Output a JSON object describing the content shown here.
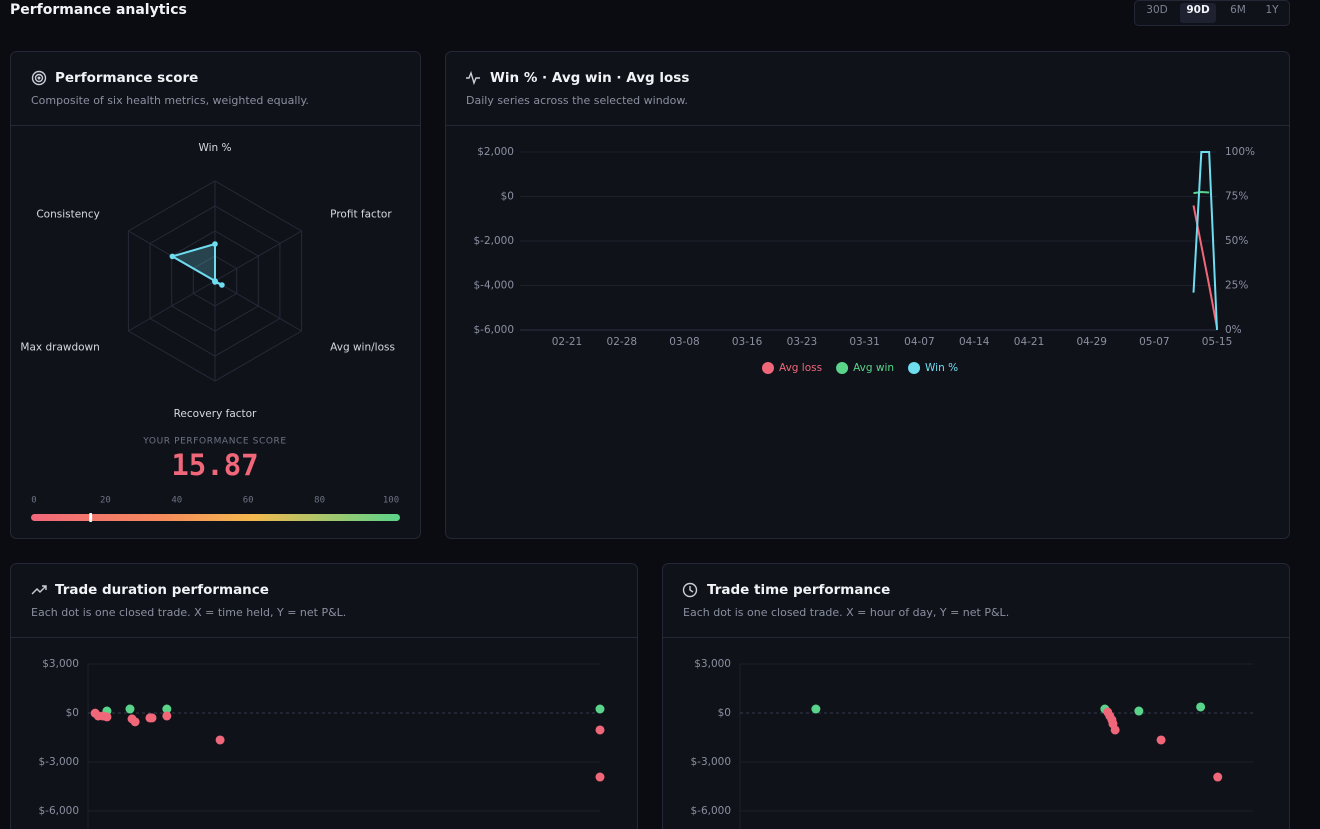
{
  "header": {
    "title": "Performance analytics",
    "ranges": [
      "30D",
      "90D",
      "6M",
      "1Y"
    ],
    "active_range": "90D"
  },
  "score_card": {
    "title": "Performance score",
    "subtitle": "Composite of six health metrics, weighted equally.",
    "chart_data": {
      "type": "radar",
      "categories": [
        "Win %",
        "Profit factor",
        "Avg win/loss",
        "Recovery factor",
        "Max drawdown",
        "Consistency"
      ],
      "values": [
        37,
        0,
        8,
        1,
        0,
        49.22
      ],
      "rlim": [
        0,
        100
      ],
      "rticks": [
        25,
        50,
        75,
        100
      ],
      "color": "#6fdcf0"
    },
    "score_label": "YOUR PERFORMANCE SCORE",
    "score": 15.87,
    "gauge": {
      "xlim": [
        0,
        100
      ],
      "xticks": [
        0,
        20,
        40,
        60,
        80,
        100
      ]
    }
  },
  "series_card": {
    "title": "Win % · Avg win · Avg loss",
    "subtitle": "Daily series across the selected window.",
    "chart_data": {
      "type": "line",
      "x": [
        "05-12",
        "05-13",
        "05-14",
        "05-15"
      ],
      "xlim": [
        "02-15",
        "05-15"
      ],
      "xticks": [
        "02-21",
        "02-28",
        "03-08",
        "03-16",
        "03-23",
        "03-31",
        "04-07",
        "04-14",
        "04-21",
        "04-29",
        "05-07",
        "05-15"
      ],
      "ylim": [
        -6000,
        2000
      ],
      "yticks": [
        {
          "value": 2000,
          "label": "$2,000"
        },
        {
          "value": 0,
          "label": "$0"
        },
        {
          "value": -2000,
          "label": "$-2,000"
        },
        {
          "value": -4000,
          "label": "$-4,000"
        },
        {
          "value": -6000,
          "label": "$-6,000"
        }
      ],
      "y2lim": [
        0,
        100
      ],
      "y2ticks": [
        {
          "value": 100,
          "label": "100%"
        },
        {
          "value": 75,
          "label": "75%"
        },
        {
          "value": 50,
          "label": "50%"
        },
        {
          "value": 25,
          "label": "25%"
        },
        {
          "value": 0,
          "label": "0%"
        }
      ],
      "grid": true,
      "series": [
        {
          "name": "Avg loss",
          "color": "#f0677a",
          "values": [
            -400,
            -2200,
            -4000,
            -5900
          ]
        },
        {
          "name": "Avg win",
          "color": "#5ad48a",
          "values": [
            150,
            200,
            180,
            null
          ]
        },
        {
          "name": "Win %",
          "color": "#6fdcf0",
          "axis": "y2",
          "values": [
            21,
            100,
            100,
            0
          ]
        }
      ]
    }
  },
  "duration_card": {
    "title": "Trade duration performance",
    "subtitle": "Each dot is one closed trade. X = time held, Y = net P&L.",
    "chart_data": {
      "type": "scatter",
      "xlim": [
        0,
        100
      ],
      "ylim": [
        -6000,
        3000
      ],
      "yticks": [
        {
          "value": 3000,
          "label": "$3,000"
        },
        {
          "value": 0,
          "label": "$0"
        },
        {
          "value": -3000,
          "label": "$-3,000"
        },
        {
          "value": -6000,
          "label": "$-6,000"
        }
      ],
      "series": [
        {
          "color": "#5ad48a",
          "x": [
            3.7,
            8.2,
            15.4,
            100
          ],
          "values": [
            120,
            245,
            245,
            245
          ]
        },
        {
          "color": "#f0677a",
          "x": [
            1.4,
            2,
            2.9,
            3.7,
            8.6,
            9.2,
            12.1,
            12.5,
            15.4,
            25.8,
            100,
            100
          ],
          "values": [
            -10,
            -180,
            -180,
            -240,
            -360,
            -540,
            -300,
            -300,
            -180,
            -1650,
            -1040,
            -3920
          ]
        }
      ]
    }
  },
  "time_card": {
    "title": "Trade time performance",
    "subtitle": "Each dot is one closed trade. X = hour of day, Y = net P&L.",
    "chart_data": {
      "type": "scatter",
      "xlim": [
        0,
        24
      ],
      "ylim": [
        -6000,
        3000
      ],
      "yticks": [
        {
          "value": 3000,
          "label": "$3,000"
        },
        {
          "value": 0,
          "label": "$0"
        },
        {
          "value": -3000,
          "label": "$-3,000"
        },
        {
          "value": -6000,
          "label": "$-6,000"
        }
      ],
      "series": [
        {
          "color": "#5ad48a",
          "x": [
            3.55,
            17.07,
            18.66,
            21.55
          ],
          "values": [
            245,
            245,
            120,
            370
          ]
        },
        {
          "color": "#f0677a",
          "x": [
            17.2,
            17.3,
            17.4,
            17.45,
            17.55,
            19.7,
            22.35
          ],
          "values": [
            60,
            -180,
            -420,
            -660,
            -1040,
            -1650,
            -3920
          ]
        }
      ]
    }
  }
}
